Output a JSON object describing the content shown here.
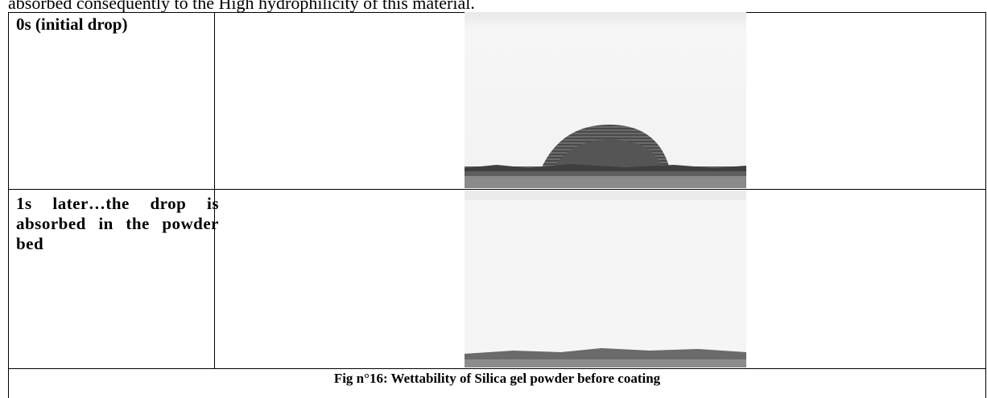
{
  "intro_text": "absorbed consequently to the High hydrophilicity of this material.",
  "table": {
    "rows": [
      [
        "0s (initial drop)"
      ],
      [
        "1s later…the drop is absorbed in the powder bed"
      ]
    ],
    "caption": "Fig n°16: Wettability of Silica gel powder before coating"
  }
}
